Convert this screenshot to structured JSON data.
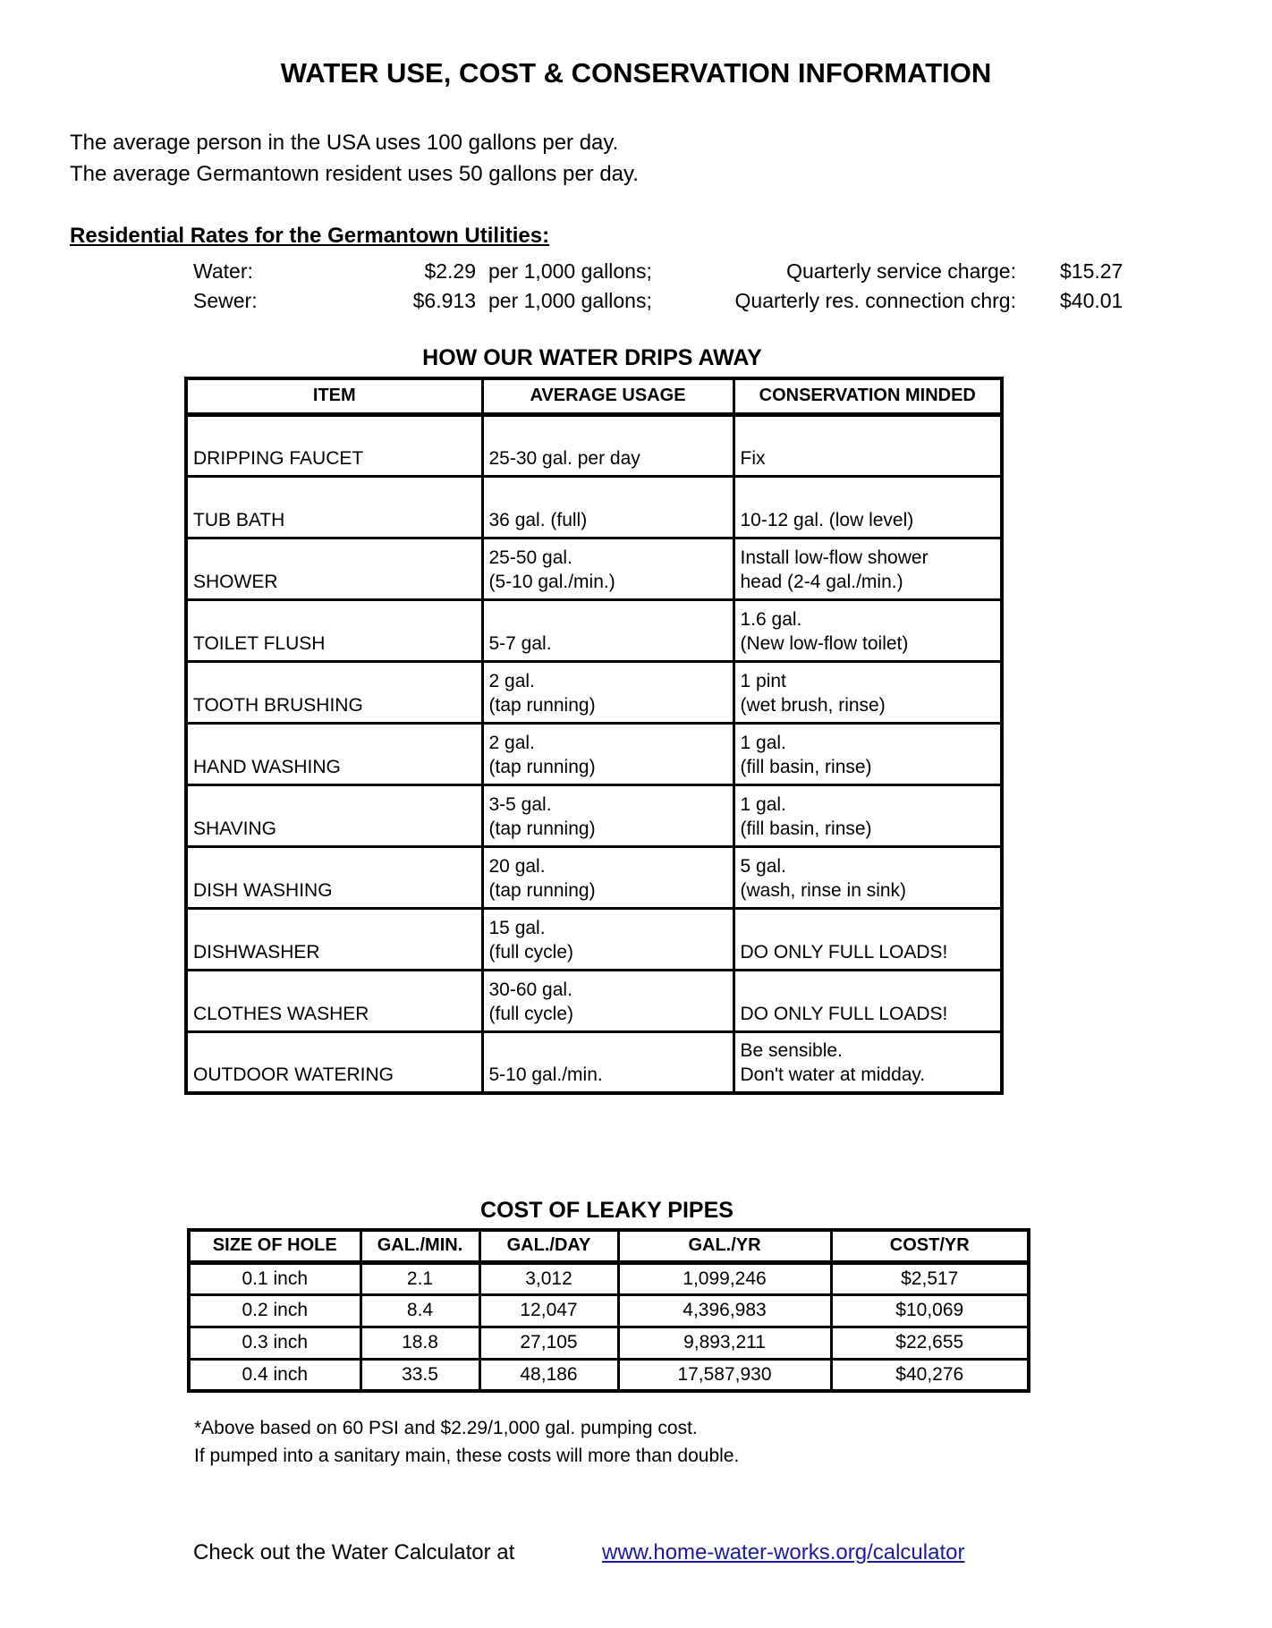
{
  "title": "WATER USE, COST & CONSERVATION INFORMATION",
  "intro": {
    "line1": "The average person in the USA uses 100 gallons per day.",
    "line2": "The average Germantown resident uses 50 gallons per day."
  },
  "rates": {
    "heading": "Residential Rates for the Germantown Utilities:",
    "rows": [
      {
        "label": "Water:",
        "rate": "$2.29",
        "unit": "per 1,000 gallons;",
        "charge_label": "Quarterly service charge:",
        "charge": "$15.27"
      },
      {
        "label": "Sewer:",
        "rate": "$6.913",
        "unit": "per 1,000 gallons;",
        "charge_label": "Quarterly res. connection chrg:",
        "charge": "$40.01"
      }
    ]
  },
  "drips_table": {
    "title": "HOW OUR WATER DRIPS AWAY",
    "headers": [
      "ITEM",
      "AVERAGE USAGE",
      "CONSERVATION MINDED"
    ],
    "rows": [
      {
        "item": "DRIPPING FAUCET",
        "usage": [
          "25-30 gal. per day"
        ],
        "conservation": [
          "Fix"
        ]
      },
      {
        "item": "TUB BATH",
        "usage": [
          "36 gal. (full)"
        ],
        "conservation": [
          "10-12 gal. (low level)"
        ]
      },
      {
        "item": "SHOWER",
        "usage": [
          "25-50 gal.",
          "(5-10 gal./min.)"
        ],
        "conservation": [
          "Install low-flow shower",
          "head (2-4 gal./min.)"
        ]
      },
      {
        "item": "TOILET FLUSH",
        "usage": [
          "5-7 gal."
        ],
        "conservation": [
          "1.6 gal.",
          "(New low-flow toilet)"
        ]
      },
      {
        "item": "TOOTH BRUSHING",
        "usage": [
          "2 gal.",
          "(tap running)"
        ],
        "conservation": [
          "1 pint",
          "(wet brush, rinse)"
        ]
      },
      {
        "item": "HAND WASHING",
        "usage": [
          "2 gal.",
          "(tap running)"
        ],
        "conservation": [
          "1 gal.",
          "(fill basin, rinse)"
        ]
      },
      {
        "item": "SHAVING",
        "usage": [
          "3-5 gal.",
          "(tap running)"
        ],
        "conservation": [
          "1 gal.",
          "(fill basin, rinse)"
        ]
      },
      {
        "item": "DISH WASHING",
        "usage": [
          "20 gal.",
          "(tap running)"
        ],
        "conservation": [
          "5 gal.",
          "(wash, rinse in sink)"
        ]
      },
      {
        "item": "DISHWASHER",
        "usage": [
          "15 gal.",
          "(full cycle)"
        ],
        "conservation": [
          "DO ONLY FULL LOADS!"
        ]
      },
      {
        "item": "CLOTHES WASHER",
        "usage": [
          "30-60 gal.",
          "(full cycle)"
        ],
        "conservation": [
          "DO ONLY FULL LOADS!"
        ]
      },
      {
        "item": "OUTDOOR WATERING",
        "usage": [
          "5-10 gal./min."
        ],
        "conservation": [
          "Be sensible.",
          "Don't water at midday."
        ]
      }
    ]
  },
  "leaky_table": {
    "title": "COST OF LEAKY PIPES",
    "headers": [
      "SIZE OF HOLE",
      "GAL./MIN.",
      "GAL./DAY",
      "GAL./YR",
      "COST/YR"
    ],
    "rows": [
      [
        "0.1 inch",
        "2.1",
        "3,012",
        "1,099,246",
        "$2,517"
      ],
      [
        "0.2 inch",
        "8.4",
        "12,047",
        "4,396,983",
        "$10,069"
      ],
      [
        "0.3 inch",
        "18.8",
        "27,105",
        "9,893,211",
        "$22,655"
      ],
      [
        "0.4 inch",
        "33.5",
        "48,186",
        "17,587,930",
        "$40,276"
      ]
    ],
    "footnotes": [
      "*Above based on 60 PSI and $2.29/1,000 gal. pumping cost.",
      "If pumped into a sanitary main, these costs will more than double."
    ]
  },
  "footer": {
    "text": "Check out the Water Calculator at",
    "link": "www.home-water-works.org/calculator",
    "link_color": "#1a1a9c"
  }
}
